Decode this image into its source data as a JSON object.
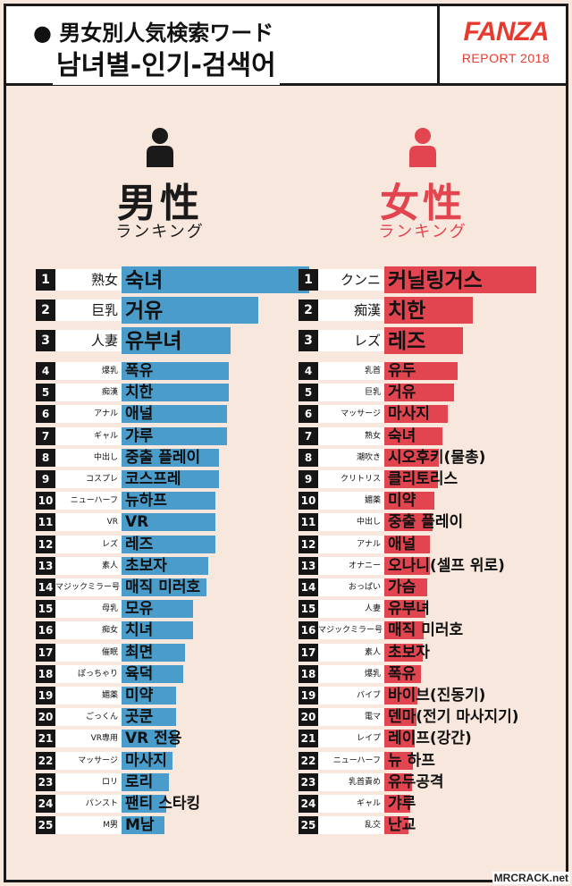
{
  "header": {
    "title_jp": "● 男女別人気検索ワード",
    "title_kr": "남녀별-인기-검색어",
    "brand": "FANZA",
    "report": "REPORT 2018"
  },
  "male": {
    "title": "男性",
    "subtitle": "ランキング",
    "color": "#4a9ccb"
  },
  "female": {
    "title": "女性",
    "subtitle": "ランキング",
    "color": "#e2454f"
  },
  "watermark": "MRCRACK.net",
  "chart_data": [
    {
      "type": "bar",
      "orientation": "horizontal",
      "title": "男性 ランキング",
      "ranks": [
        "1",
        "2",
        "3",
        "4",
        "5",
        "6",
        "7",
        "8",
        "9",
        "10",
        "11",
        "12",
        "13",
        "14",
        "15",
        "16",
        "17",
        "18",
        "19",
        "20",
        "21",
        "22",
        "23",
        "24",
        "25"
      ],
      "categories": [
        "熟女",
        "巨乳",
        "人妻",
        "爆乳",
        "痴漢",
        "アナル",
        "ギャル",
        "中出し",
        "コスプレ",
        "ニューハーフ",
        "VR",
        "レズ",
        "素人",
        "マジックミラー号",
        "母乳",
        "痴女",
        "催眠",
        "ぽっちゃり",
        "媚薬",
        "ごっくん",
        "VR専用",
        "マッサージ",
        "ロリ",
        "パンスト",
        "M男"
      ],
      "labels_kr": [
        "숙녀",
        "거유",
        "유부녀",
        "폭유",
        "치한",
        "애널",
        "갸루",
        "중출 플레이",
        "코스프레",
        "뉴하프",
        "VR",
        "레즈",
        "초보자",
        "매직 미러호",
        "모유",
        "치녀",
        "최면",
        "육덕",
        "미약",
        "곳쿤",
        "VR 전용",
        "마사지",
        "로리",
        "팬티 스타킹",
        "M남"
      ],
      "values": [
        100,
        73,
        58,
        57,
        57,
        56,
        56,
        52,
        52,
        50,
        50,
        50,
        46,
        45,
        38,
        38,
        34,
        33,
        29,
        29,
        29,
        27,
        25,
        24,
        23
      ]
    },
    {
      "type": "bar",
      "orientation": "horizontal",
      "title": "女性 ランキング",
      "ranks": [
        "1",
        "2",
        "3",
        "4",
        "5",
        "6",
        "7",
        "8",
        "9",
        "10",
        "11",
        "12",
        "13",
        "14",
        "15",
        "16",
        "17",
        "18",
        "19",
        "20",
        "21",
        "22",
        "23",
        "24",
        "25"
      ],
      "categories": [
        "クンニ",
        "痴漢",
        "レズ",
        "乳首",
        "巨乳",
        "マッサージ",
        "熟女",
        "潮吹き",
        "クリトリス",
        "媚薬",
        "中出し",
        "アナル",
        "オナニー",
        "おっぱい",
        "人妻",
        "マジックミラー号",
        "素人",
        "爆乳",
        "バイブ",
        "電マ",
        "レイプ",
        "ニューハーフ",
        "乳首責め",
        "ギャル",
        "乱交"
      ],
      "labels_kr": [
        "커닐링거스",
        "치한",
        "레즈",
        "유두",
        "거유",
        "마사지",
        "숙녀",
        "시오후키(물총)",
        "클리토리스",
        "미약",
        "중출 플레이",
        "애널",
        "오나니(셀프 위로)",
        "가슴",
        "유부녀",
        "매직 미러호",
        "초보자",
        "폭유",
        "바이브(진동기)",
        "덴마(전기 마사지기)",
        "레이프(강간)",
        "뉴 하프",
        "유두공격",
        "갸루",
        "난교"
      ],
      "values": [
        100,
        58,
        52,
        48,
        46,
        42,
        38,
        36,
        35,
        33,
        32,
        30,
        30,
        28,
        27,
        26,
        25,
        24,
        22,
        21,
        20,
        19,
        18,
        17,
        16
      ]
    }
  ]
}
